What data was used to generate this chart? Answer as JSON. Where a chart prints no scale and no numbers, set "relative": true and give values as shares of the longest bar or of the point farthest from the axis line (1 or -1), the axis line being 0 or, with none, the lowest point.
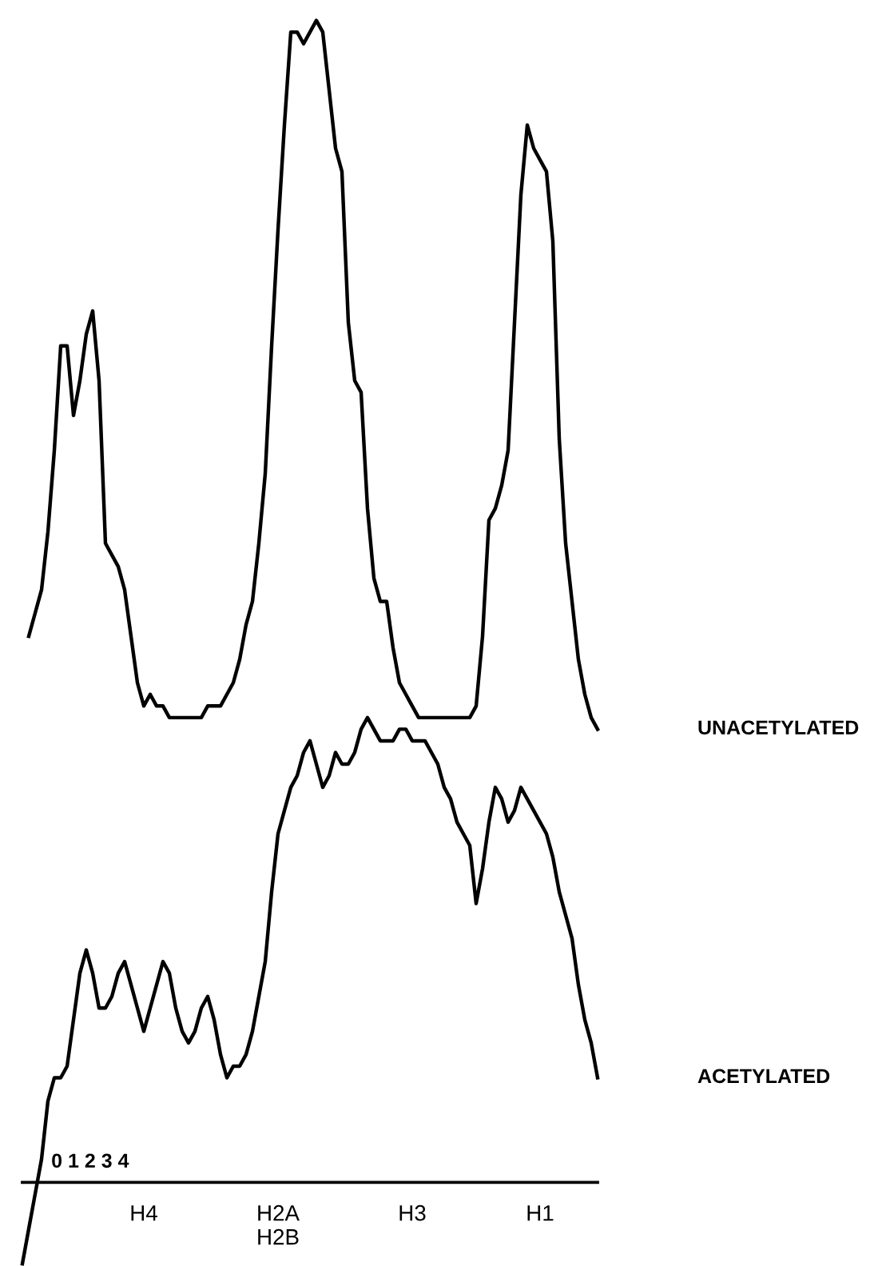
{
  "chart_data": {
    "type": "line",
    "relative": true,
    "legend": false,
    "grid": false,
    "marker": "none",
    "line_style": "solid",
    "categories": [
      null,
      null,
      null,
      null,
      null,
      null,
      null,
      null,
      null,
      null,
      null,
      null,
      null,
      null,
      null,
      null,
      null,
      null,
      null,
      "H4",
      null,
      null,
      null,
      null,
      null,
      null,
      null,
      null,
      null,
      null,
      null,
      null,
      null,
      null,
      null,
      null,
      null,
      null,
      null,
      null,
      "H2A\nH2B",
      null,
      null,
      null,
      null,
      null,
      null,
      null,
      null,
      null,
      null,
      null,
      null,
      null,
      null,
      null,
      null,
      null,
      null,
      null,
      null,
      "H3",
      null,
      null,
      null,
      null,
      null,
      null,
      null,
      null,
      null,
      null,
      null,
      null,
      null,
      null,
      null,
      null,
      null,
      null,
      null,
      "H1",
      null,
      null,
      null,
      null,
      null,
      null,
      null,
      null,
      null
    ],
    "series": [
      {
        "name": "UNACETYLATED",
        "color": "#000000",
        "values": [
          null,
          0.47,
          0.49,
          0.51,
          0.56,
          0.63,
          0.72,
          0.72,
          0.66,
          0.69,
          0.73,
          0.75,
          0.69,
          0.55,
          0.54,
          0.53,
          0.51,
          0.47,
          0.43,
          0.41,
          0.42,
          0.41,
          0.41,
          0.4,
          0.4,
          0.4,
          0.4,
          0.4,
          0.4,
          0.41,
          0.41,
          0.41,
          0.42,
          0.43,
          0.45,
          0.48,
          0.5,
          0.55,
          0.61,
          0.72,
          0.82,
          0.91,
          0.99,
          0.99,
          0.98,
          0.99,
          1.0,
          0.99,
          0.94,
          0.89,
          0.87,
          0.74,
          0.69,
          0.68,
          0.58,
          0.52,
          0.5,
          0.5,
          0.46,
          0.43,
          0.42,
          0.41,
          0.4,
          0.4,
          0.4,
          0.4,
          0.4,
          0.4,
          0.4,
          0.4,
          0.4,
          0.41,
          0.47,
          0.57,
          0.58,
          0.6,
          0.63,
          0.74,
          0.85,
          0.91,
          0.89,
          0.88,
          0.87,
          0.81,
          0.64,
          0.55,
          0.5,
          0.45,
          0.42,
          0.4,
          0.39
        ]
      },
      {
        "name": "ACETYLATED",
        "color": "#000000",
        "values": [
          -0.07,
          -0.04,
          -0.01,
          0.02,
          0.07,
          0.09,
          0.09,
          0.1,
          0.14,
          0.18,
          0.2,
          0.18,
          0.15,
          0.15,
          0.16,
          0.18,
          0.19,
          0.17,
          0.15,
          0.13,
          0.15,
          0.17,
          0.19,
          0.18,
          0.15,
          0.13,
          0.12,
          0.13,
          0.15,
          0.16,
          0.14,
          0.11,
          0.09,
          0.1,
          0.1,
          0.11,
          0.13,
          0.16,
          0.19,
          0.25,
          0.3,
          0.32,
          0.34,
          0.35,
          0.37,
          0.38,
          0.36,
          0.34,
          0.35,
          0.37,
          0.36,
          0.36,
          0.37,
          0.39,
          0.4,
          0.39,
          0.38,
          0.38,
          0.38,
          0.39,
          0.39,
          0.38,
          0.38,
          0.38,
          0.37,
          0.36,
          0.34,
          0.33,
          0.31,
          0.3,
          0.29,
          0.24,
          0.27,
          0.31,
          0.34,
          0.33,
          0.31,
          0.32,
          0.34,
          0.33,
          0.32,
          0.31,
          0.3,
          0.28,
          0.25,
          0.23,
          0.21,
          0.17,
          0.14,
          0.12,
          0.09
        ]
      }
    ],
    "annotations": [
      "0 1 2 3 4"
    ]
  }
}
